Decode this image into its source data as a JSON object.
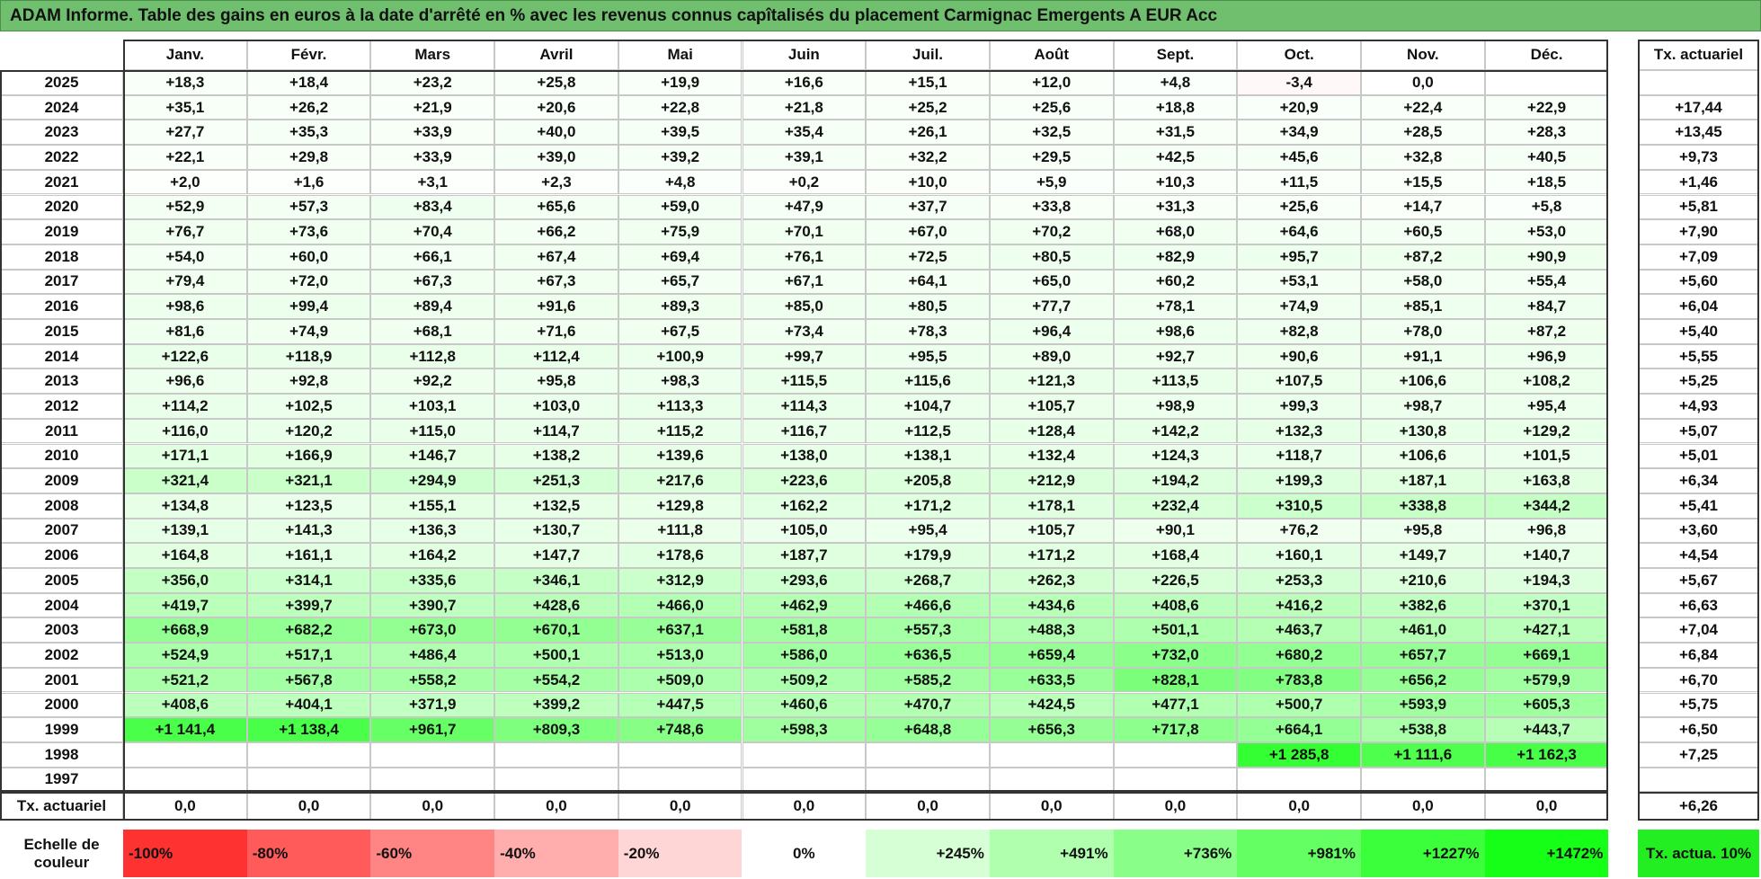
{
  "title": "ADAM Informe. Table des gains en euros à la date d'arrêté en % avec les revenus connus capîtalisés du placement Carmignac Emergents A EUR Acc",
  "header": {
    "months": [
      "Janv.",
      "Févr.",
      "Mars",
      "Avril",
      "Mai",
      "Juin",
      "Juil.",
      "Août",
      "Sept.",
      "Oct.",
      "Nov.",
      "Déc."
    ],
    "rate": "Tx. actuariel"
  },
  "rows": [
    {
      "year": "2025",
      "values": [
        "+18,3",
        "+18,4",
        "+23,2",
        "+25,8",
        "+19,9",
        "+16,6",
        "+15,1",
        "+12,0",
        "+4,8",
        "-3,4",
        "0,0",
        null
      ],
      "rate": null
    },
    {
      "year": "2024",
      "values": [
        "+35,1",
        "+26,2",
        "+21,9",
        "+20,6",
        "+22,8",
        "+21,8",
        "+25,2",
        "+25,6",
        "+18,8",
        "+20,9",
        "+22,4",
        "+22,9"
      ],
      "rate": "+17,44"
    },
    {
      "year": "2023",
      "values": [
        "+27,7",
        "+35,3",
        "+33,9",
        "+40,0",
        "+39,5",
        "+35,4",
        "+26,1",
        "+32,5",
        "+31,5",
        "+34,9",
        "+28,5",
        "+28,3"
      ],
      "rate": "+13,45"
    },
    {
      "year": "2022",
      "values": [
        "+22,1",
        "+29,8",
        "+33,9",
        "+39,0",
        "+39,2",
        "+39,1",
        "+32,2",
        "+29,5",
        "+42,5",
        "+45,6",
        "+32,8",
        "+40,5"
      ],
      "rate": "+9,73"
    },
    {
      "year": "2021",
      "values": [
        "+2,0",
        "+1,6",
        "+3,1",
        "+2,3",
        "+4,8",
        "+0,2",
        "+10,0",
        "+5,9",
        "+10,3",
        "+11,5",
        "+15,5",
        "+18,5"
      ],
      "rate": "+1,46"
    },
    {
      "year": "2020",
      "values": [
        "+52,9",
        "+57,3",
        "+83,4",
        "+65,6",
        "+59,0",
        "+47,9",
        "+37,7",
        "+33,8",
        "+31,3",
        "+25,6",
        "+14,7",
        "+5,8"
      ],
      "rate": "+5,81"
    },
    {
      "year": "2019",
      "values": [
        "+76,7",
        "+73,6",
        "+70,4",
        "+66,2",
        "+75,9",
        "+70,1",
        "+67,0",
        "+70,2",
        "+68,0",
        "+64,6",
        "+60,5",
        "+53,0"
      ],
      "rate": "+7,90"
    },
    {
      "year": "2018",
      "values": [
        "+54,0",
        "+60,0",
        "+66,1",
        "+67,4",
        "+69,4",
        "+76,1",
        "+72,5",
        "+80,5",
        "+82,9",
        "+95,7",
        "+87,2",
        "+90,9"
      ],
      "rate": "+7,09"
    },
    {
      "year": "2017",
      "values": [
        "+79,4",
        "+72,0",
        "+67,3",
        "+67,3",
        "+65,7",
        "+67,1",
        "+64,1",
        "+65,0",
        "+60,2",
        "+53,1",
        "+58,0",
        "+55,4"
      ],
      "rate": "+5,60"
    },
    {
      "year": "2016",
      "values": [
        "+98,6",
        "+99,4",
        "+89,4",
        "+91,6",
        "+89,3",
        "+85,0",
        "+80,5",
        "+77,7",
        "+78,1",
        "+74,9",
        "+85,1",
        "+84,7"
      ],
      "rate": "+6,04"
    },
    {
      "year": "2015",
      "values": [
        "+81,6",
        "+74,9",
        "+68,1",
        "+71,6",
        "+67,5",
        "+73,4",
        "+78,3",
        "+96,4",
        "+98,6",
        "+82,8",
        "+78,0",
        "+87,2"
      ],
      "rate": "+5,40"
    },
    {
      "year": "2014",
      "values": [
        "+122,6",
        "+118,9",
        "+112,8",
        "+112,4",
        "+100,9",
        "+99,7",
        "+95,5",
        "+89,0",
        "+92,7",
        "+90,6",
        "+91,1",
        "+96,9"
      ],
      "rate": "+5,55"
    },
    {
      "year": "2013",
      "values": [
        "+96,6",
        "+92,8",
        "+92,2",
        "+95,8",
        "+98,3",
        "+115,5",
        "+115,6",
        "+121,3",
        "+113,5",
        "+107,5",
        "+106,6",
        "+108,2"
      ],
      "rate": "+5,25"
    },
    {
      "year": "2012",
      "values": [
        "+114,2",
        "+102,5",
        "+103,1",
        "+103,0",
        "+113,3",
        "+114,3",
        "+104,7",
        "+105,7",
        "+98,9",
        "+99,3",
        "+98,7",
        "+95,4"
      ],
      "rate": "+4,93"
    },
    {
      "year": "2011",
      "values": [
        "+116,0",
        "+120,2",
        "+115,0",
        "+114,7",
        "+115,2",
        "+116,7",
        "+112,5",
        "+128,4",
        "+142,2",
        "+132,3",
        "+130,8",
        "+129,2"
      ],
      "rate": "+5,07"
    },
    {
      "year": "2010",
      "values": [
        "+171,1",
        "+166,9",
        "+146,7",
        "+138,2",
        "+139,6",
        "+138,0",
        "+138,1",
        "+132,4",
        "+124,3",
        "+118,7",
        "+106,6",
        "+101,5"
      ],
      "rate": "+5,01"
    },
    {
      "year": "2009",
      "values": [
        "+321,4",
        "+321,1",
        "+294,9",
        "+251,3",
        "+217,6",
        "+223,6",
        "+205,8",
        "+212,9",
        "+194,2",
        "+199,3",
        "+187,1",
        "+163,8"
      ],
      "rate": "+6,34"
    },
    {
      "year": "2008",
      "values": [
        "+134,8",
        "+123,5",
        "+155,1",
        "+132,5",
        "+129,8",
        "+162,2",
        "+171,2",
        "+178,1",
        "+232,4",
        "+310,5",
        "+338,8",
        "+344,2"
      ],
      "rate": "+5,41"
    },
    {
      "year": "2007",
      "values": [
        "+139,1",
        "+141,3",
        "+136,3",
        "+130,7",
        "+111,8",
        "+105,0",
        "+95,4",
        "+105,7",
        "+90,1",
        "+76,2",
        "+95,8",
        "+96,8"
      ],
      "rate": "+3,60"
    },
    {
      "year": "2006",
      "values": [
        "+164,8",
        "+161,1",
        "+164,2",
        "+147,7",
        "+178,6",
        "+187,7",
        "+179,9",
        "+171,2",
        "+168,4",
        "+160,1",
        "+149,7",
        "+140,7"
      ],
      "rate": "+4,54"
    },
    {
      "year": "2005",
      "values": [
        "+356,0",
        "+314,1",
        "+335,6",
        "+346,1",
        "+312,9",
        "+293,6",
        "+268,7",
        "+262,3",
        "+226,5",
        "+253,3",
        "+210,6",
        "+194,3"
      ],
      "rate": "+5,67"
    },
    {
      "year": "2004",
      "values": [
        "+419,7",
        "+399,7",
        "+390,7",
        "+428,6",
        "+466,0",
        "+462,9",
        "+466,6",
        "+434,6",
        "+408,6",
        "+416,2",
        "+382,6",
        "+370,1"
      ],
      "rate": "+6,63"
    },
    {
      "year": "2003",
      "values": [
        "+668,9",
        "+682,2",
        "+673,0",
        "+670,1",
        "+637,1",
        "+581,8",
        "+557,3",
        "+488,3",
        "+501,1",
        "+463,7",
        "+461,0",
        "+427,1"
      ],
      "rate": "+7,04"
    },
    {
      "year": "2002",
      "values": [
        "+524,9",
        "+517,1",
        "+486,4",
        "+500,1",
        "+513,0",
        "+586,0",
        "+636,5",
        "+659,4",
        "+732,0",
        "+680,2",
        "+657,7",
        "+669,1"
      ],
      "rate": "+6,84"
    },
    {
      "year": "2001",
      "values": [
        "+521,2",
        "+567,8",
        "+558,2",
        "+554,2",
        "+509,0",
        "+509,2",
        "+585,2",
        "+633,5",
        "+828,1",
        "+783,8",
        "+656,2",
        "+579,9"
      ],
      "rate": "+6,70"
    },
    {
      "year": "2000",
      "values": [
        "+408,6",
        "+404,1",
        "+371,9",
        "+399,2",
        "+447,5",
        "+460,6",
        "+470,7",
        "+424,5",
        "+477,1",
        "+500,7",
        "+593,9",
        "+605,3"
      ],
      "rate": "+5,75"
    },
    {
      "year": "1999",
      "values": [
        "+1 141,4",
        "+1 138,4",
        "+961,7",
        "+809,3",
        "+748,6",
        "+598,3",
        "+648,8",
        "+656,3",
        "+717,8",
        "+664,1",
        "+538,8",
        "+443,7"
      ],
      "rate": "+6,50"
    },
    {
      "year": "1998",
      "values": [
        null,
        null,
        null,
        null,
        null,
        null,
        null,
        null,
        null,
        "+1 285,8",
        "+1 111,6",
        "+1 162,3"
      ],
      "rate": "+7,25"
    },
    {
      "year": "1997",
      "values": [
        null,
        null,
        null,
        null,
        null,
        null,
        null,
        null,
        null,
        null,
        null,
        null
      ],
      "rate": null
    }
  ],
  "footer": {
    "label": "Tx. actuariel",
    "values": [
      "0,0",
      "0,0",
      "0,0",
      "0,0",
      "0,0",
      "0,0",
      "0,0",
      "0,0",
      "0,0",
      "0,0",
      "0,0",
      "0,0"
    ],
    "rate": "+6,26"
  },
  "scale": {
    "label": "Echelle de couleur",
    "steps": [
      "-100%",
      "-80%",
      "-60%",
      "-40%",
      "-20%",
      "0%",
      "+245%",
      "+491%",
      "+736%",
      "+981%",
      "+1227%",
      "+1472%"
    ],
    "rate_label": "Tx. actua. 10%"
  }
}
